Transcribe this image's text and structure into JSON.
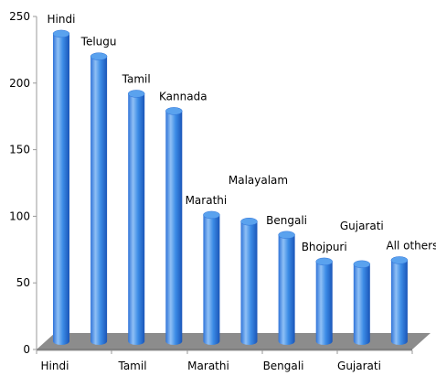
{
  "chart_data": {
    "type": "bar",
    "categories": [
      "Hindi",
      "Telugu",
      "Tamil",
      "Kannada",
      "Marathi",
      "Malayalam",
      "Bengali",
      "Bhojpuri",
      "Gujarati",
      "All others"
    ],
    "values": [
      237,
      220,
      192,
      179,
      101,
      96,
      86,
      66,
      64,
      67
    ],
    "x_tick_labels": [
      "Hindi",
      "Tamil",
      "Marathi",
      "Bengali",
      "Gujarati"
    ],
    "y_ticks": [
      0,
      50,
      100,
      150,
      200,
      250
    ],
    "ylim": [
      0,
      250
    ],
    "title": "",
    "xlabel": "",
    "ylabel": "",
    "grid": false,
    "legend": "none",
    "style": "3d-cylinder",
    "colors": {
      "bar_light": "#8fc0f5",
      "bar_mid": "#3c8ce6",
      "bar_dark": "#1a55b8",
      "floor": "#8c8c8c",
      "axis": "#000000"
    }
  }
}
